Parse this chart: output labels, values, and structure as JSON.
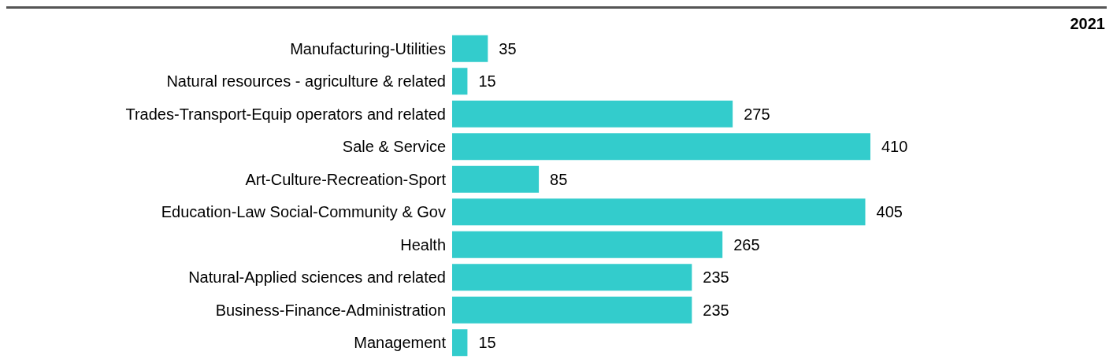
{
  "chart_data": {
    "type": "bar",
    "orientation": "horizontal",
    "title": "2021",
    "categories": [
      "Manufacturing-Utilities",
      "Natural resources - agriculture & related",
      "Trades-Transport-Equip operators and related",
      "Sale & Service",
      "Art-Culture-Recreation-Sport",
      "Education-Law Social-Community & Gov",
      "Health",
      "Natural-Applied sciences and related",
      "Business-Finance-Administration",
      "Management"
    ],
    "values": [
      35,
      15,
      275,
      410,
      85,
      405,
      265,
      235,
      235,
      15
    ],
    "color": "#33cccc",
    "data_labels": true,
    "tick_labels": "y",
    "grid": false
  }
}
